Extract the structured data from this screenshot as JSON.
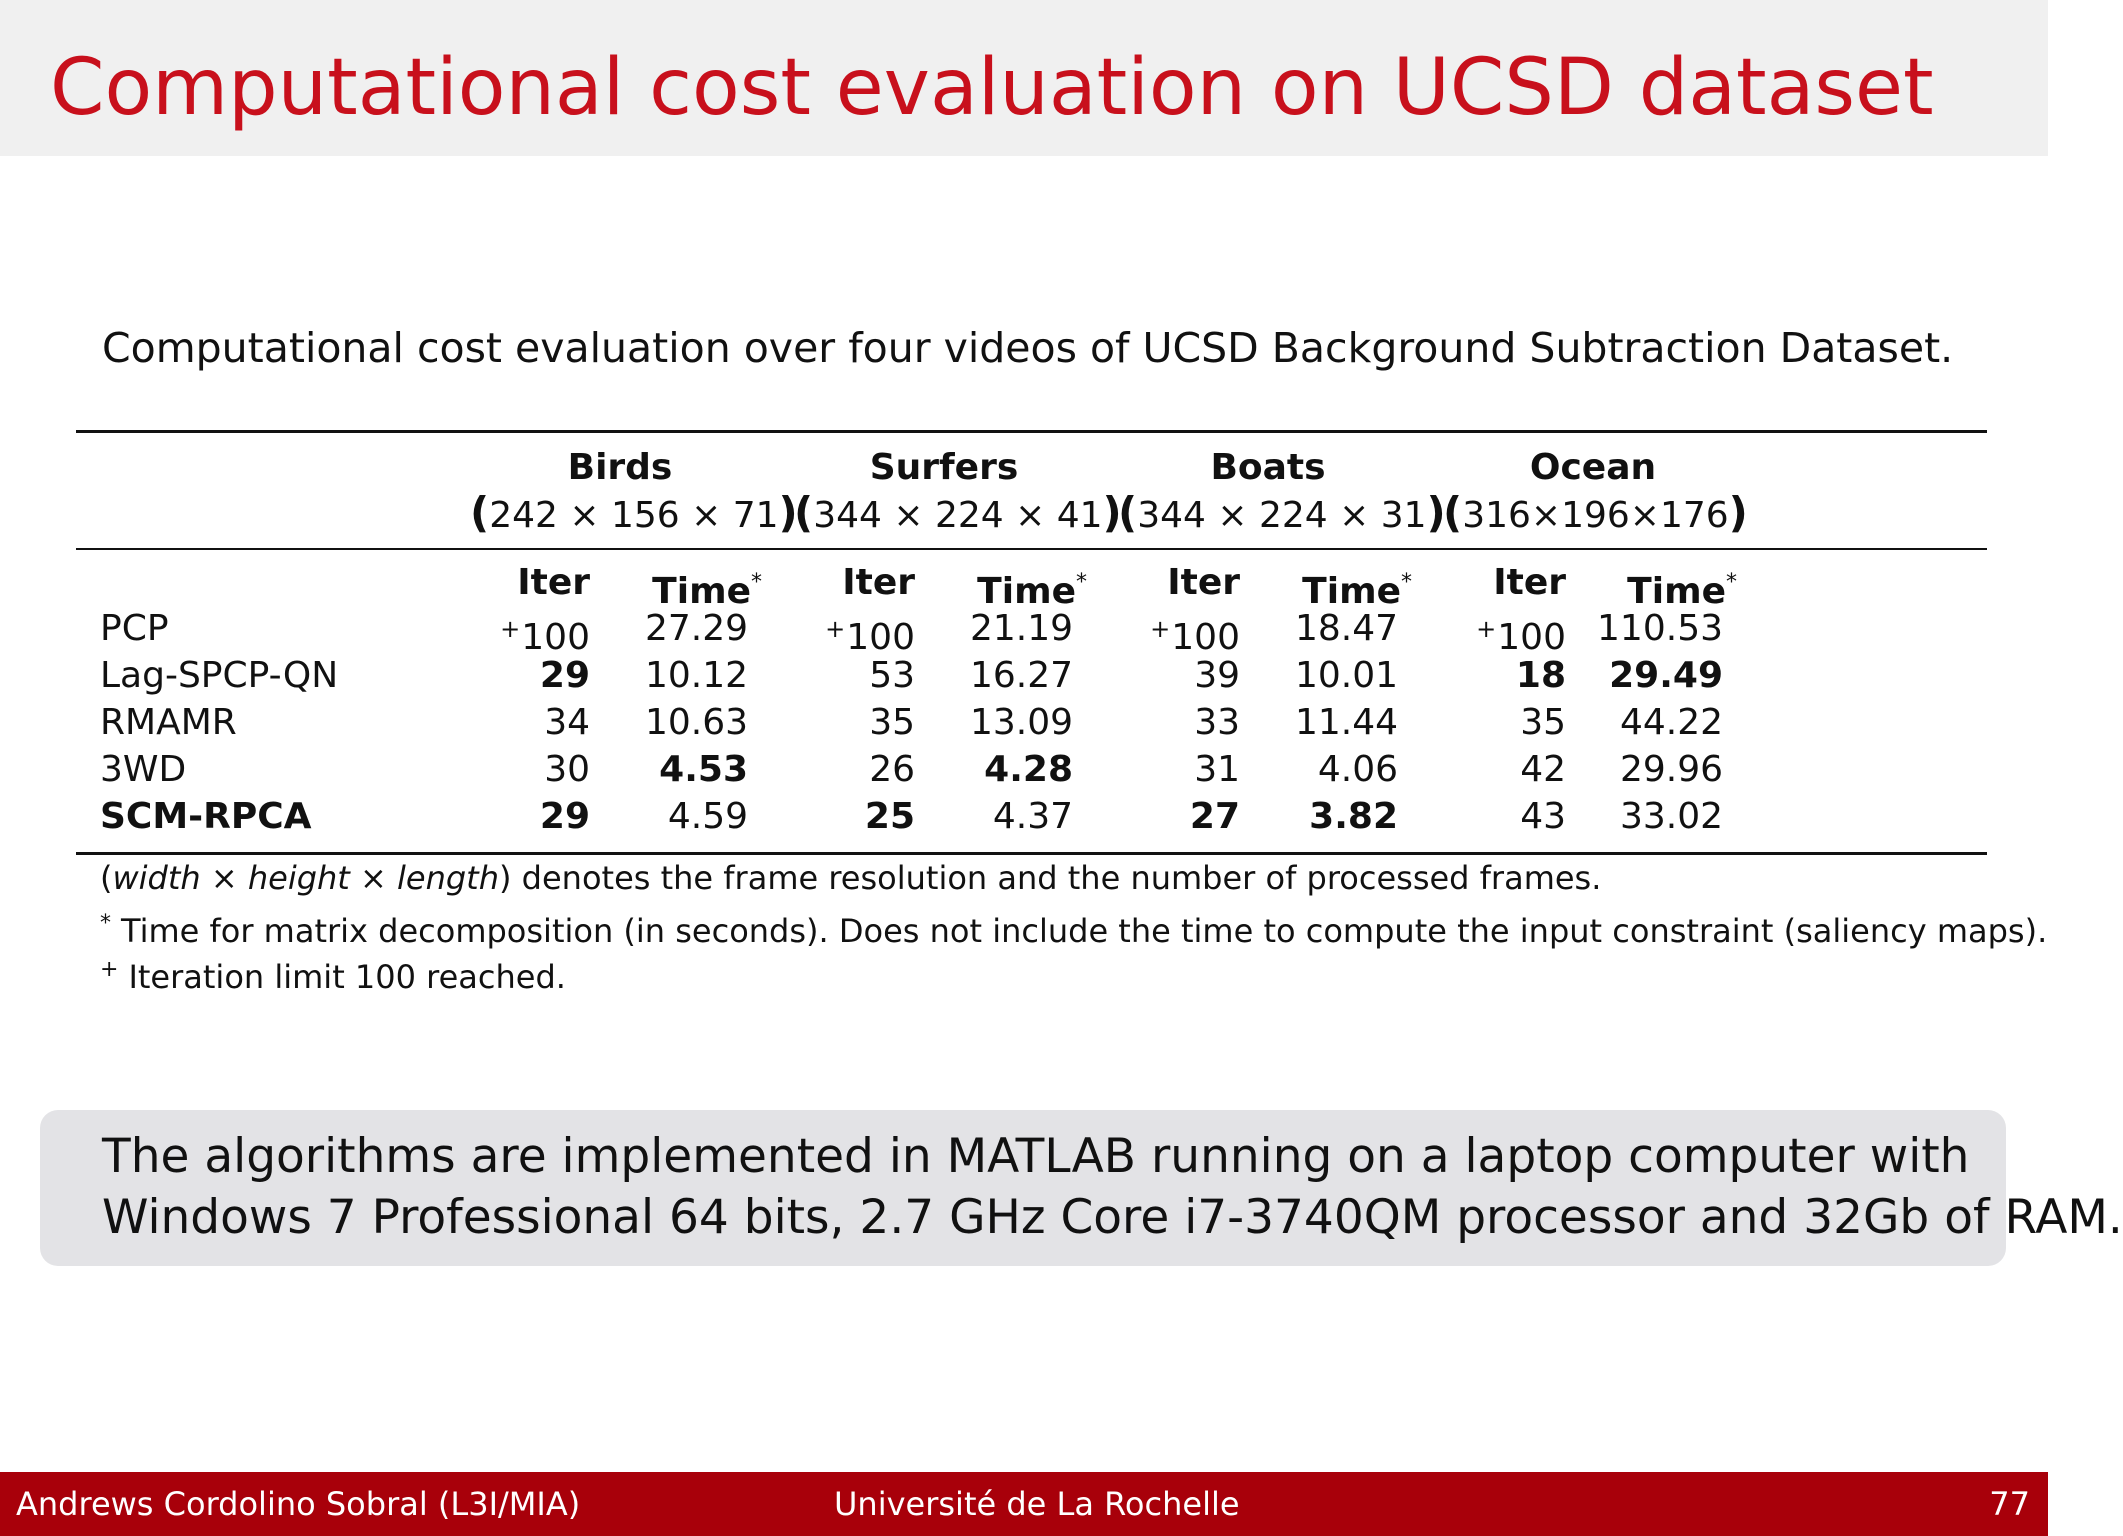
{
  "slide": {
    "title": "Computational cost evaluation on UCSD dataset",
    "caption": "Computational cost evaluation over four videos of UCSD Background Subtraction Dataset."
  },
  "table": {
    "datasets": [
      {
        "name": "Birds",
        "dims": "242 × 156 × 71"
      },
      {
        "name": "Surfers",
        "dims": "344 × 224 × 41"
      },
      {
        "name": "Boats",
        "dims": "344 × 224 × 31"
      },
      {
        "name": "Ocean",
        "dims": "316×196×176"
      }
    ],
    "subheaders": {
      "iter": "Iter",
      "time": "Time",
      "time_mark": "*"
    },
    "rows": [
      {
        "method": "PCP",
        "bold": false,
        "values": [
          {
            "iter": "100",
            "iter_mark": "+",
            "time": "27.29"
          },
          {
            "iter": "100",
            "iter_mark": "+",
            "time": "21.19"
          },
          {
            "iter": "100",
            "iter_mark": "+",
            "time": "18.47"
          },
          {
            "iter": "100",
            "iter_mark": "+",
            "time": "110.53"
          }
        ]
      },
      {
        "method": "Lag-SPCP-QN",
        "bold": false,
        "values": [
          {
            "iter": "29",
            "iter_bold": true,
            "time": "10.12"
          },
          {
            "iter": "53",
            "time": "16.27"
          },
          {
            "iter": "39",
            "time": "10.01"
          },
          {
            "iter": "18",
            "iter_bold": true,
            "time": "29.49",
            "time_bold": true
          }
        ]
      },
      {
        "method": "RMAMR",
        "bold": false,
        "values": [
          {
            "iter": "34",
            "time": "10.63"
          },
          {
            "iter": "35",
            "time": "13.09"
          },
          {
            "iter": "33",
            "time": "11.44"
          },
          {
            "iter": "35",
            "time": "44.22"
          }
        ]
      },
      {
        "method": "3WD",
        "bold": false,
        "values": [
          {
            "iter": "30",
            "time": "4.53",
            "time_bold": true
          },
          {
            "iter": "26",
            "time": "4.28",
            "time_bold": true
          },
          {
            "iter": "31",
            "time": "4.06"
          },
          {
            "iter": "42",
            "time": "29.96"
          }
        ]
      },
      {
        "method": "SCM-RPCA",
        "bold": true,
        "values": [
          {
            "iter": "29",
            "iter_bold": true,
            "time": "4.59"
          },
          {
            "iter": "25",
            "iter_bold": true,
            "time": "4.37"
          },
          {
            "iter": "27",
            "iter_bold": true,
            "time": "3.82",
            "time_bold": true
          },
          {
            "iter": "43",
            "time": "33.02"
          }
        ]
      }
    ],
    "notes": {
      "dims_note": {
        "width": "width",
        "height": "height",
        "length": "length",
        "text": "denotes the frame resolution and the number of processed frames."
      },
      "time_note": {
        "symbol": "*",
        "text": "Time for matrix decomposition (in seconds). Does not include the time to compute the input constraint (saliency maps)."
      },
      "iter_note": {
        "symbol": "+",
        "text": "Iteration limit 100 reached."
      }
    }
  },
  "highlight": {
    "line1": "The algorithms are implemented in MATLAB running on a laptop computer with",
    "line2": "Windows 7 Professional 64 bits, 2.7 GHz Core i7-3740QM processor and 32Gb of RAM."
  },
  "footer": {
    "author": "Andrews Cordolino Sobral (L3I/MIA)",
    "institution": "Université de La Rochelle",
    "page": "77"
  },
  "colors": {
    "title": "#c8101c",
    "footer_bg": "#a8000a",
    "title_bar_bg": "#f0f0f0",
    "box_bg": "#e3e3e6"
  }
}
